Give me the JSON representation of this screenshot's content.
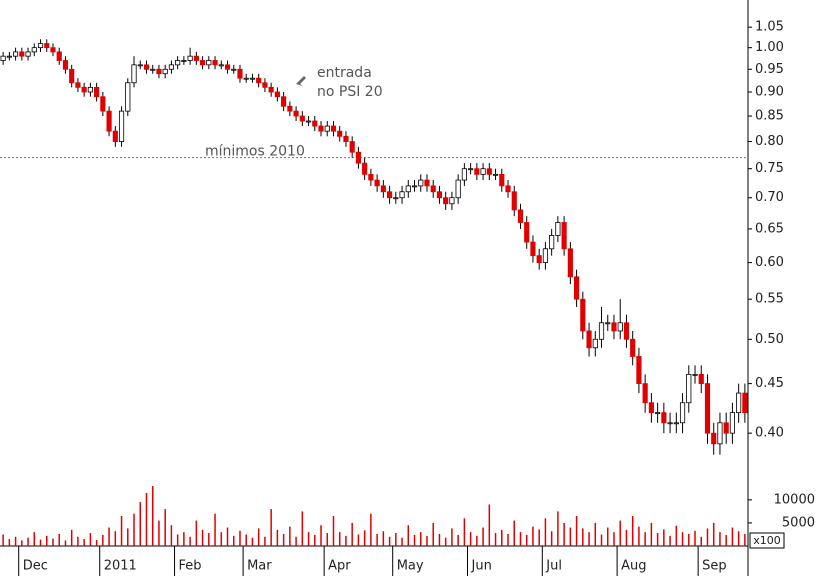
{
  "chart_data": {
    "type": "candlestick",
    "log_scale": true,
    "up_color": "#ffffff",
    "down_color": "#e00000",
    "xlim": [
      0,
      120
    ],
    "xticks": [
      {
        "value": 3,
        "label": "Dec"
      },
      {
        "value": 16,
        "label": "2011"
      },
      {
        "value": 28,
        "label": "Feb"
      },
      {
        "value": 39,
        "label": "Mar"
      },
      {
        "value": 52,
        "label": "Apr"
      },
      {
        "value": 63,
        "label": "May"
      },
      {
        "value": 75,
        "label": "Jun"
      },
      {
        "value": 87,
        "label": "Jul"
      },
      {
        "value": 99,
        "label": "Aug"
      },
      {
        "value": 112,
        "label": "Sep"
      }
    ],
    "ylim": [
      0.363,
      1.12
    ],
    "yticks": [
      {
        "value": 0.4,
        "label": "0.40"
      },
      0.45,
      {
        "value": 0.5,
        "label": "0.50"
      },
      0.55,
      {
        "value": 0.6,
        "label": "0.60"
      },
      0.65,
      {
        "value": 0.7,
        "label": "0.70"
      },
      0.75,
      {
        "value": 0.8,
        "label": "0.80"
      },
      0.85,
      {
        "value": 0.9,
        "label": "0.90"
      },
      0.95,
      {
        "value": 1,
        "label": "1.00"
      },
      1.05
    ],
    "open": [
      0.97,
      0.98,
      0.98,
      0.99,
      0.98,
      0.99,
      1.0,
      1.01,
      1.0,
      0.99,
      0.97,
      0.95,
      0.92,
      0.91,
      0.9,
      0.91,
      0.89,
      0.86,
      0.82,
      0.8,
      0.86,
      0.92,
      0.96,
      0.96,
      0.95,
      0.95,
      0.94,
      0.95,
      0.96,
      0.97,
      0.97,
      0.98,
      0.97,
      0.96,
      0.97,
      0.96,
      0.96,
      0.95,
      0.95,
      0.93,
      0.93,
      0.93,
      0.92,
      0.91,
      0.9,
      0.89,
      0.87,
      0.86,
      0.85,
      0.84,
      0.84,
      0.83,
      0.82,
      0.83,
      0.82,
      0.81,
      0.8,
      0.78,
      0.76,
      0.74,
      0.73,
      0.72,
      0.71,
      0.7,
      0.7,
      0.71,
      0.72,
      0.72,
      0.73,
      0.72,
      0.71,
      0.7,
      0.69,
      0.7,
      0.73,
      0.75,
      0.75,
      0.74,
      0.75,
      0.74,
      0.74,
      0.72,
      0.71,
      0.68,
      0.66,
      0.63,
      0.61,
      0.6,
      0.62,
      0.64,
      0.66,
      0.62,
      0.58,
      0.55,
      0.51,
      0.49,
      0.5,
      0.52,
      0.52,
      0.51,
      0.52,
      0.5,
      0.48,
      0.45,
      0.43,
      0.42,
      0.42,
      0.41,
      0.41,
      0.41,
      0.43,
      0.46,
      0.46,
      0.45,
      0.4,
      0.39,
      0.41,
      0.4,
      0.42,
      0.44
    ],
    "high": [
      0.99,
      0.99,
      1.0,
      1.0,
      1.0,
      1.01,
      1.02,
      1.02,
      1.01,
      1.0,
      0.98,
      0.96,
      0.93,
      0.92,
      0.92,
      0.92,
      0.9,
      0.87,
      0.83,
      0.87,
      0.93,
      0.98,
      0.97,
      0.97,
      0.96,
      0.96,
      0.96,
      0.97,
      0.98,
      0.98,
      1.0,
      0.99,
      0.98,
      0.98,
      0.98,
      0.97,
      0.97,
      0.96,
      0.96,
      0.94,
      0.94,
      0.94,
      0.93,
      0.92,
      0.91,
      0.9,
      0.88,
      0.87,
      0.86,
      0.85,
      0.85,
      0.84,
      0.84,
      0.84,
      0.83,
      0.82,
      0.81,
      0.79,
      0.77,
      0.75,
      0.74,
      0.73,
      0.72,
      0.71,
      0.72,
      0.73,
      0.73,
      0.74,
      0.74,
      0.73,
      0.72,
      0.71,
      0.71,
      0.74,
      0.76,
      0.76,
      0.76,
      0.76,
      0.76,
      0.75,
      0.75,
      0.73,
      0.72,
      0.69,
      0.67,
      0.64,
      0.62,
      0.63,
      0.65,
      0.67,
      0.67,
      0.63,
      0.59,
      0.56,
      0.52,
      0.51,
      0.54,
      0.53,
      0.53,
      0.55,
      0.53,
      0.51,
      0.49,
      0.46,
      0.44,
      0.43,
      0.43,
      0.42,
      0.42,
      0.44,
      0.47,
      0.47,
      0.47,
      0.46,
      0.41,
      0.42,
      0.42,
      0.43,
      0.45,
      0.45
    ],
    "low": [
      0.96,
      0.97,
      0.97,
      0.97,
      0.97,
      0.98,
      0.99,
      0.99,
      0.98,
      0.96,
      0.94,
      0.91,
      0.9,
      0.89,
      0.89,
      0.88,
      0.85,
      0.81,
      0.79,
      0.79,
      0.85,
      0.91,
      0.95,
      0.94,
      0.94,
      0.93,
      0.93,
      0.94,
      0.95,
      0.96,
      0.96,
      0.96,
      0.95,
      0.95,
      0.95,
      0.95,
      0.94,
      0.94,
      0.92,
      0.92,
      0.92,
      0.91,
      0.9,
      0.89,
      0.88,
      0.86,
      0.85,
      0.84,
      0.83,
      0.83,
      0.82,
      0.81,
      0.81,
      0.81,
      0.8,
      0.79,
      0.77,
      0.75,
      0.73,
      0.72,
      0.71,
      0.7,
      0.69,
      0.69,
      0.69,
      0.7,
      0.71,
      0.71,
      0.71,
      0.7,
      0.69,
      0.68,
      0.68,
      0.69,
      0.72,
      0.74,
      0.73,
      0.73,
      0.73,
      0.73,
      0.71,
      0.7,
      0.67,
      0.65,
      0.62,
      0.6,
      0.59,
      0.59,
      0.61,
      0.63,
      0.61,
      0.57,
      0.54,
      0.5,
      0.48,
      0.48,
      0.49,
      0.51,
      0.5,
      0.5,
      0.49,
      0.47,
      0.44,
      0.42,
      0.41,
      0.41,
      0.4,
      0.4,
      0.4,
      0.4,
      0.42,
      0.45,
      0.44,
      0.39,
      0.38,
      0.38,
      0.39,
      0.39,
      0.41,
      0.41
    ],
    "close": [
      0.98,
      0.98,
      0.99,
      0.98,
      0.99,
      1.0,
      1.01,
      1.0,
      0.99,
      0.97,
      0.95,
      0.92,
      0.91,
      0.9,
      0.91,
      0.89,
      0.86,
      0.82,
      0.8,
      0.86,
      0.92,
      0.96,
      0.96,
      0.95,
      0.95,
      0.94,
      0.95,
      0.96,
      0.97,
      0.97,
      0.98,
      0.97,
      0.96,
      0.97,
      0.96,
      0.96,
      0.95,
      0.95,
      0.93,
      0.93,
      0.93,
      0.92,
      0.91,
      0.9,
      0.89,
      0.87,
      0.86,
      0.85,
      0.84,
      0.84,
      0.83,
      0.82,
      0.83,
      0.82,
      0.81,
      0.8,
      0.78,
      0.76,
      0.74,
      0.73,
      0.72,
      0.71,
      0.7,
      0.7,
      0.71,
      0.72,
      0.72,
      0.73,
      0.72,
      0.71,
      0.7,
      0.69,
      0.7,
      0.73,
      0.75,
      0.75,
      0.74,
      0.75,
      0.74,
      0.74,
      0.72,
      0.71,
      0.68,
      0.66,
      0.63,
      0.61,
      0.6,
      0.62,
      0.64,
      0.66,
      0.62,
      0.58,
      0.55,
      0.51,
      0.49,
      0.5,
      0.52,
      0.52,
      0.51,
      0.52,
      0.5,
      0.48,
      0.45,
      0.43,
      0.42,
      0.42,
      0.41,
      0.41,
      0.41,
      0.43,
      0.46,
      0.46,
      0.45,
      0.4,
      0.39,
      0.41,
      0.4,
      0.42,
      0.44,
      0.42
    ],
    "reference_line": {
      "value": 0.77,
      "label": "mínimos 2010"
    },
    "annotation": [
      "entrada",
      "no PSI 20"
    ],
    "volume": {
      "color": "#e00000",
      "ylim": [
        0,
        13000
      ],
      "yticks": [
        5000,
        10000
      ],
      "unit": "x100",
      "values": [
        2500,
        1500,
        2000,
        1200,
        1800,
        3000,
        1400,
        2200,
        1600,
        2600,
        1200,
        3500,
        2000,
        1500,
        2800,
        1300,
        2400,
        4000,
        3200,
        6500,
        3800,
        7000,
        9500,
        11500,
        13000,
        5500,
        8000,
        4500,
        2500,
        3000,
        2000,
        5500,
        3500,
        2800,
        7000,
        3000,
        4000,
        2200,
        3300,
        2500,
        1800,
        3800,
        2000,
        8000,
        3500,
        2600,
        4200,
        2000,
        7500,
        3000,
        2400,
        4500,
        2800,
        6500,
        3000,
        2200,
        5000,
        2500,
        3400,
        7000,
        2600,
        3200,
        2000,
        2800,
        1800,
        4500,
        2400,
        3000,
        2200,
        5000,
        2600,
        1800,
        3800,
        2400,
        6000,
        3000,
        2200,
        4000,
        9000,
        2800,
        3500,
        2600,
        5500,
        3000,
        2400,
        4200,
        3600,
        6000,
        3200,
        7500,
        5000,
        4000,
        6500,
        3800,
        3000,
        5000,
        2500,
        4000,
        3000,
        5500,
        3500,
        6500,
        4200,
        3000,
        5000,
        2800,
        3600,
        2200,
        4400,
        3000,
        2600,
        3300,
        2000,
        3800,
        5000,
        3000,
        2400,
        4000,
        3200,
        2600
      ]
    }
  }
}
